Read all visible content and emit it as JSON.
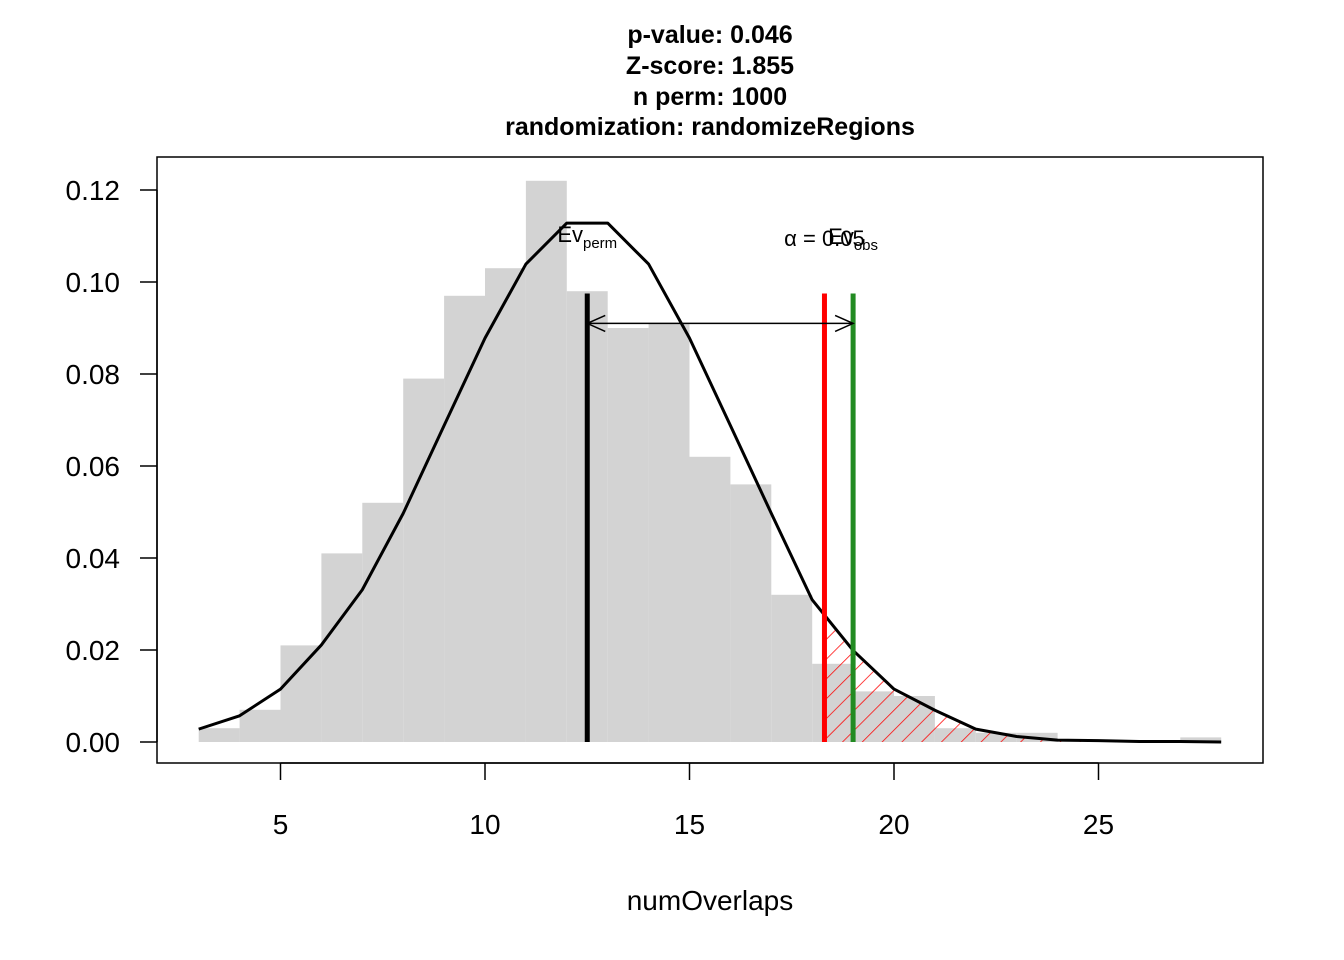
{
  "chart_data": {
    "type": "bar",
    "title_lines": [
      "p-value:  0.046",
      "Z-score:  1.855",
      "n perm:  1000",
      "randomization:  randomizeRegions"
    ],
    "xlabel": "numOverlaps",
    "ylabel": "",
    "xlim": [
      2,
      29
    ],
    "ylim": [
      0,
      0.12
    ],
    "x_ticks": [
      5,
      10,
      15,
      20,
      25
    ],
    "y_ticks": [
      0.0,
      0.02,
      0.04,
      0.06,
      0.08,
      0.1,
      0.12
    ],
    "y_tick_labels": [
      "0.00",
      "0.02",
      "0.04",
      "0.06",
      "0.08",
      "0.10",
      "0.12"
    ],
    "histogram": {
      "bin_starts": [
        3,
        4,
        5,
        6,
        7,
        8,
        9,
        10,
        11,
        12,
        13,
        14,
        15,
        16,
        17,
        18,
        19,
        20,
        21,
        22,
        23,
        24,
        25,
        26,
        27
      ],
      "bin_width": 1,
      "density": [
        0.003,
        0.007,
        0.021,
        0.041,
        0.052,
        0.079,
        0.097,
        0.103,
        0.122,
        0.098,
        0.09,
        0.091,
        0.062,
        0.056,
        0.032,
        0.017,
        0.011,
        0.01,
        0.003,
        0.002,
        0.002,
        0.0,
        0.0,
        0.0,
        0.001
      ],
      "color": "#d3d3d3"
    },
    "normal_curve": {
      "x": [
        3,
        4,
        5,
        6,
        7,
        8,
        9,
        10,
        11,
        12,
        13,
        14,
        15,
        16,
        17,
        18,
        19,
        20,
        21,
        22,
        23,
        24,
        25,
        26,
        27,
        28
      ],
      "y": [
        0.0028,
        0.0057,
        0.0115,
        0.0211,
        0.0331,
        0.0497,
        0.0688,
        0.0878,
        0.1039,
        0.1128,
        0.1128,
        0.1039,
        0.0878,
        0.0688,
        0.0497,
        0.0309,
        0.0199,
        0.0115,
        0.0069,
        0.0028,
        0.0012,
        0.0004,
        0.0003,
        0.0001,
        0.0001,
        0.0
      ],
      "color": "#000000"
    },
    "lines": [
      {
        "name": "Ev_perm",
        "x": 12.5,
        "color": "#000000"
      },
      {
        "name": "alpha",
        "x": 18.3,
        "color": "#ff0000"
      },
      {
        "name": "Ev_obs",
        "x": 19.0,
        "color": "#228b22"
      }
    ],
    "arrow": {
      "x_from": 12.5,
      "x_to": 19.0,
      "y": 0.091
    },
    "shaded_tail": {
      "x_from": 18.3,
      "pattern": "hatch",
      "color": "#ff0000"
    },
    "annotations": {
      "ev_perm": {
        "main": "Ev",
        "sub": "perm"
      },
      "alpha": "α = 0.05",
      "ev_obs": {
        "main": "Ev",
        "sub": "obs"
      }
    }
  }
}
